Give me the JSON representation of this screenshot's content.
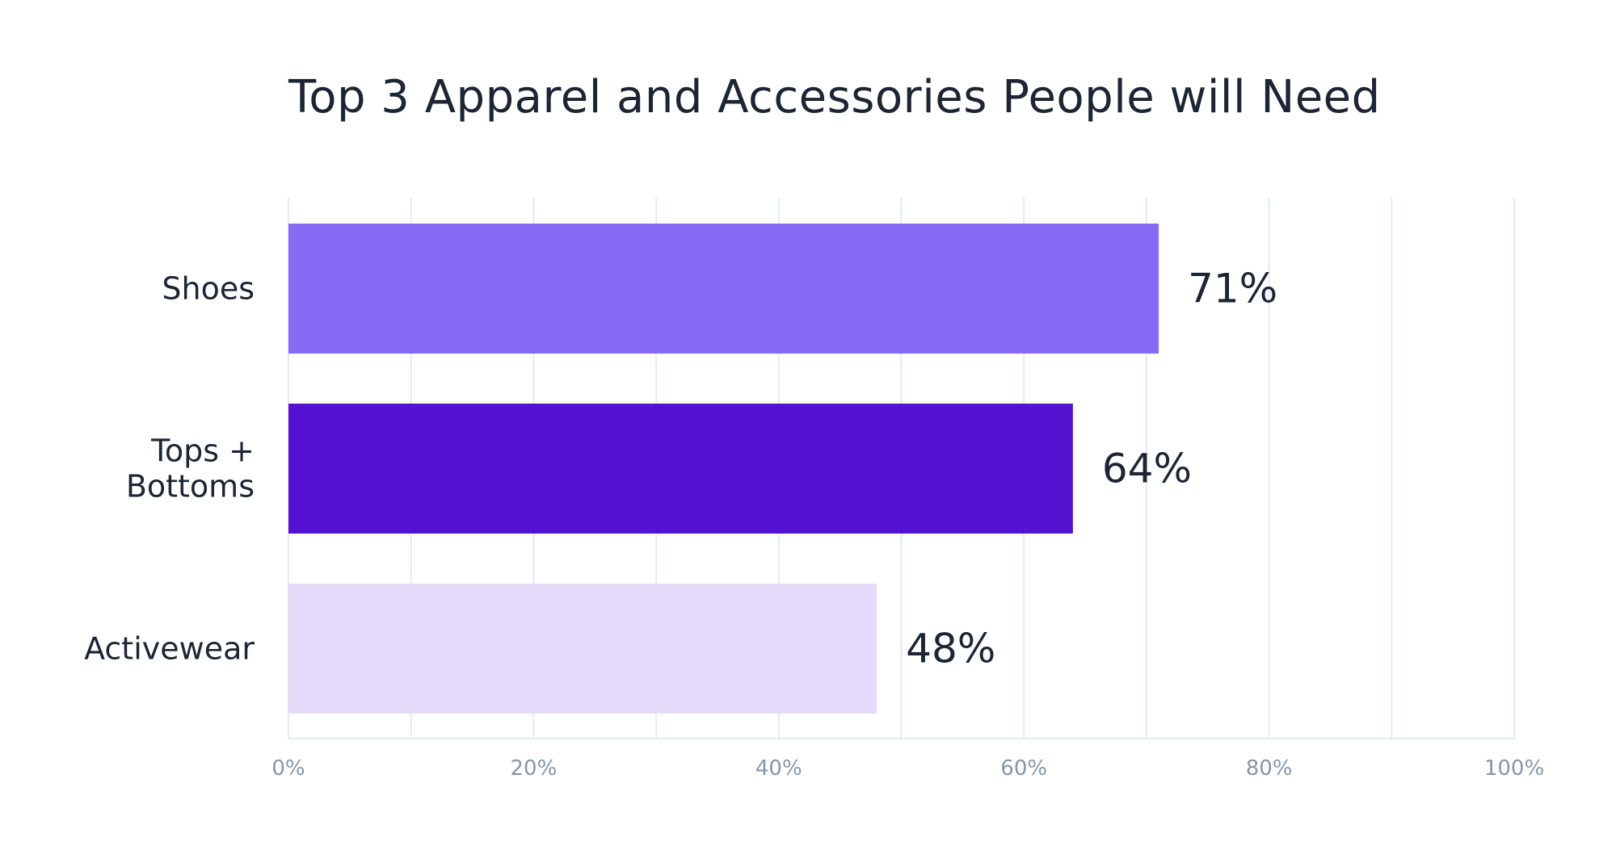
{
  "chart_data": {
    "type": "bar",
    "orientation": "horizontal",
    "title": "Top 3 Apparel and Accessories People will Need",
    "categories": [
      {
        "lines": [
          "Shoes"
        ],
        "value": 71,
        "value_label": "71%",
        "color": "#866af3"
      },
      {
        "lines": [
          "Tops +",
          "Bottoms"
        ],
        "value": 64,
        "value_label": "64%",
        "color": "#5512d1"
      },
      {
        "lines": [
          "Activewear"
        ],
        "value": 48,
        "value_label": "48%",
        "color": "#e4daf9"
      }
    ],
    "xticks": [
      "0%",
      "20%",
      "40%",
      "60%",
      "80%",
      "100%"
    ],
    "xlim": [
      0,
      100
    ],
    "grid": true,
    "gridline_color": "#e3ebf3",
    "tick_label_color": "#8796a8"
  }
}
